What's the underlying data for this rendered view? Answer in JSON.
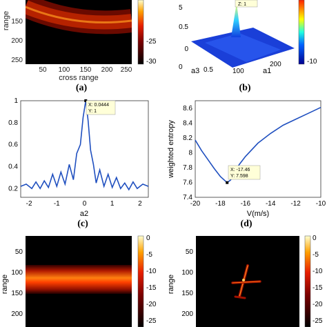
{
  "panel_a": {
    "ylabel": "range",
    "xlabel": "cross range",
    "yticks": [
      "150",
      "200",
      "250"
    ],
    "xticks": [
      "50",
      "100",
      "150",
      "200",
      "250"
    ],
    "cbar_ticks": [
      "-25",
      "-30"
    ],
    "caption": "(a)"
  },
  "panel_b": {
    "top_tick": "5",
    "peak_label": "Z: 1",
    "zticks": [
      "0.5",
      "0"
    ],
    "axis_a3": "a3",
    "axis_a1": "a1",
    "a3_ticks": [
      "0.5",
      "0"
    ],
    "a1_ticks": [
      "100",
      "200"
    ],
    "cbar_ticks": [
      "-10"
    ],
    "caption": "(b)"
  },
  "panel_c": {
    "xlabel": "a2",
    "yticks": [
      "1",
      "0.8",
      "0.6",
      "0.4",
      "0.2"
    ],
    "xticks": [
      "-2",
      "-1",
      "0",
      "1",
      "2"
    ],
    "datatip": {
      "x": "X: 0.0444",
      "y": "Y: 1"
    },
    "caption": "(c)"
  },
  "panel_d": {
    "xlabel": "V(m/s)",
    "ylabel": "weighted entropy",
    "yticks": [
      "8.6",
      "8.4",
      "8.2",
      "8",
      "7.8",
      "7.6",
      "7.4"
    ],
    "xticks": [
      "-20",
      "-18",
      "-16",
      "-14",
      "-12",
      "-10"
    ],
    "datatip": {
      "x": "X: -17.46",
      "y": "Y: 7.598"
    },
    "caption": "(d)"
  },
  "panel_e": {
    "ylabel": "range",
    "yticks": [
      "50",
      "100",
      "150",
      "200"
    ],
    "cbar_ticks": [
      "0",
      "-5",
      "-10",
      "-15",
      "-20",
      "-25"
    ]
  },
  "panel_f": {
    "ylabel": "range",
    "yticks": [
      "50",
      "100",
      "150",
      "200"
    ],
    "cbar_ticks": [
      "0",
      "-5",
      "-10",
      "-15",
      "-20",
      "-25"
    ]
  },
  "colors": {
    "line": "#1f4fbf",
    "hot_low": "#000000",
    "hot_mid": "#e01e00",
    "hot_high": "#ffffc0"
  },
  "chart_data": [
    {
      "type": "line",
      "xlabel": "a2",
      "ylabel": "",
      "xlim": [
        -2.3,
        2.3
      ],
      "ylim": [
        0.12,
        1.0
      ],
      "x": [
        -2.3,
        -2.1,
        -1.9,
        -1.75,
        -1.6,
        -1.45,
        -1.3,
        -1.15,
        -1.0,
        -0.85,
        -0.7,
        -0.55,
        -0.4,
        -0.28,
        -0.15,
        -0.05,
        0.0444,
        0.13,
        0.22,
        0.32,
        0.42,
        0.55,
        0.7,
        0.85,
        1.0,
        1.15,
        1.3,
        1.45,
        1.6,
        1.75,
        1.9,
        2.1,
        2.3
      ],
      "y": [
        0.22,
        0.24,
        0.2,
        0.26,
        0.2,
        0.27,
        0.21,
        0.33,
        0.22,
        0.35,
        0.24,
        0.42,
        0.28,
        0.52,
        0.6,
        0.85,
        1.0,
        0.82,
        0.55,
        0.42,
        0.25,
        0.37,
        0.22,
        0.33,
        0.21,
        0.3,
        0.2,
        0.25,
        0.19,
        0.26,
        0.2,
        0.24,
        0.22
      ]
    },
    {
      "type": "line",
      "xlabel": "V(m/s)",
      "ylabel": "weighted entropy",
      "xlim": [
        -20,
        -10
      ],
      "ylim": [
        7.4,
        8.7
      ],
      "x": [
        -20,
        -19.5,
        -19,
        -18.5,
        -18,
        -17.46,
        -17.2,
        -17,
        -16.8,
        -16.5,
        -16,
        -15,
        -14,
        -13,
        -12,
        -11,
        -10
      ],
      "y": [
        8.17,
        8.03,
        7.91,
        7.79,
        7.68,
        7.598,
        7.63,
        7.68,
        7.75,
        7.84,
        7.95,
        8.13,
        8.26,
        8.37,
        8.45,
        8.53,
        8.61
      ]
    }
  ]
}
